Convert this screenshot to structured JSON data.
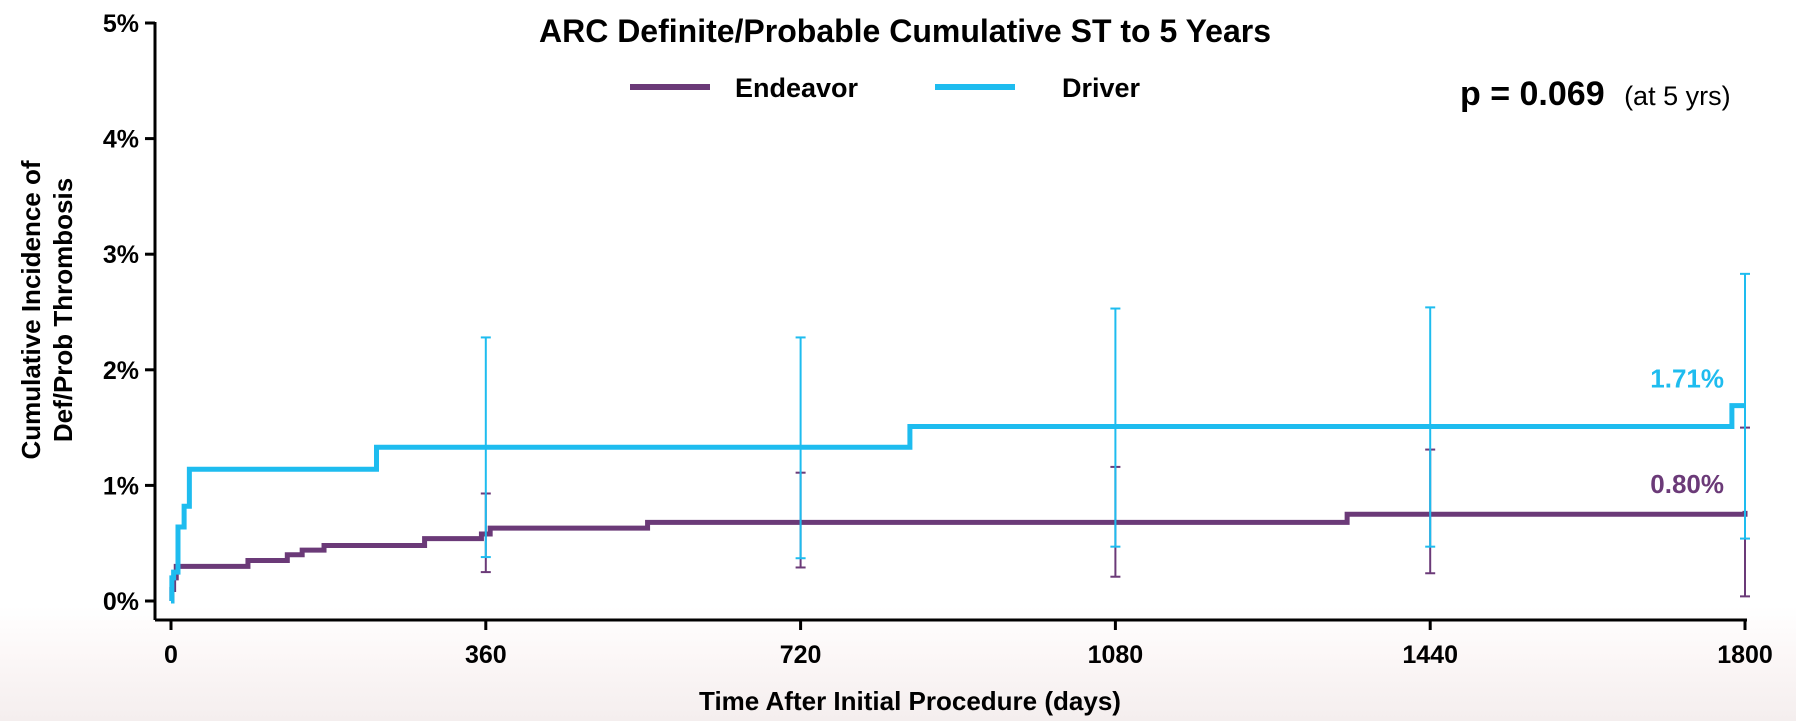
{
  "chart_data": {
    "type": "line",
    "title": "ARC Definite/Probable Cumulative ST to 5 Years",
    "xlabel": "Time After Initial Procedure (days)",
    "ylabel_line1": "Cumulative Incidence of",
    "ylabel_line2": "Def/Prob Thrombosis",
    "xlim": [
      0,
      1800
    ],
    "ylim": [
      0,
      5
    ],
    "x_ticks": [
      0,
      360,
      720,
      1080,
      1440,
      1800
    ],
    "x_tick_labels": [
      "0",
      "360",
      "720",
      "1080",
      "1440",
      "1800"
    ],
    "y_ticks": [
      0,
      1,
      2,
      3,
      4,
      5
    ],
    "y_tick_labels": [
      "0%",
      "1%",
      "2%",
      "3%",
      "4%",
      "5%"
    ],
    "grid": false,
    "legend_position": "top-center",
    "annotation": {
      "p_label": "p = 0.069",
      "p_note": "(at 5 yrs)"
    },
    "series": [
      {
        "name": "Endeavor",
        "color": "#6b3a78",
        "end_label": "0.80%",
        "steps": [
          [
            0,
            0
          ],
          [
            1,
            0.1
          ],
          [
            3,
            0.2
          ],
          [
            6,
            0.3
          ],
          [
            88,
            0.35
          ],
          [
            133,
            0.4
          ],
          [
            150,
            0.44
          ],
          [
            175,
            0.48
          ],
          [
            290,
            0.54
          ],
          [
            355,
            0.58
          ],
          [
            365,
            0.63
          ],
          [
            545,
            0.68
          ],
          [
            1345,
            0.75
          ],
          [
            1800,
            0.78
          ]
        ],
        "error_bars": [
          {
            "x": 360,
            "low": 0.25,
            "high": 0.93
          },
          {
            "x": 720,
            "low": 0.29,
            "high": 1.11
          },
          {
            "x": 1080,
            "low": 0.21,
            "high": 1.16
          },
          {
            "x": 1440,
            "low": 0.24,
            "high": 1.31
          },
          {
            "x": 1800,
            "low": 0.04,
            "high": 1.5
          }
        ]
      },
      {
        "name": "Driver",
        "color": "#1ebcef",
        "end_label": "1.71%",
        "steps": [
          [
            0,
            0
          ],
          [
            1,
            0.2
          ],
          [
            3,
            0.25
          ],
          [
            8,
            0.64
          ],
          [
            15,
            0.82
          ],
          [
            21,
            1.14
          ],
          [
            235,
            1.33
          ],
          [
            845,
            1.51
          ],
          [
            1785,
            1.69
          ],
          [
            1800,
            1.69
          ]
        ],
        "error_bars": [
          {
            "x": 360,
            "low": 0.38,
            "high": 2.28
          },
          {
            "x": 720,
            "low": 0.37,
            "high": 2.28
          },
          {
            "x": 1080,
            "low": 0.47,
            "high": 2.53
          },
          {
            "x": 1440,
            "low": 0.47,
            "high": 2.54
          },
          {
            "x": 1800,
            "low": 0.54,
            "high": 2.83
          }
        ]
      }
    ]
  }
}
